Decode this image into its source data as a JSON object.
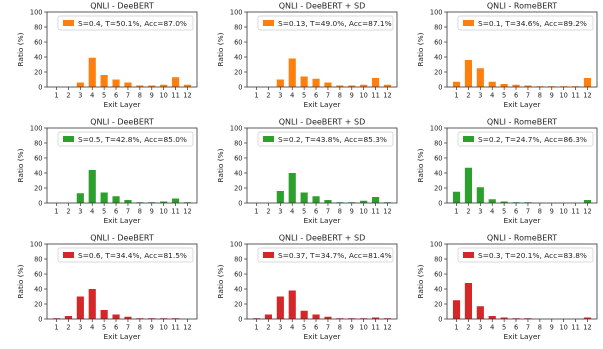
{
  "chart_data": [
    {
      "type": "bar",
      "title": "QNLI - DeeBERT",
      "xlabel": "Exit Layer",
      "ylabel": "Ratio (%)",
      "ylim": [
        0,
        100
      ],
      "yticks": [
        0,
        20,
        40,
        60,
        80,
        100
      ],
      "categories": [
        "1",
        "2",
        "3",
        "4",
        "5",
        "6",
        "7",
        "8",
        "9",
        "10",
        "11",
        "12"
      ],
      "series": [
        {
          "name": "S=0.4, T=50.1%, Acc=87.0%",
          "color": "#ff7f0e",
          "values": [
            0,
            0,
            6,
            39,
            16,
            10,
            6,
            2,
            2,
            3,
            13,
            3
          ]
        }
      ],
      "legend": "top-right"
    },
    {
      "type": "bar",
      "title": "QNLI - DeeBERT + SD",
      "xlabel": "Exit Layer",
      "ylabel": "Ratio (%)",
      "ylim": [
        0,
        100
      ],
      "yticks": [
        0,
        20,
        40,
        60,
        80,
        100
      ],
      "categories": [
        "1",
        "2",
        "3",
        "4",
        "5",
        "6",
        "7",
        "8",
        "9",
        "10",
        "11",
        "12"
      ],
      "series": [
        {
          "name": "S=0.13, T=49.0%, Acc=87.1%",
          "color": "#ff7f0e",
          "values": [
            0,
            0,
            10,
            38,
            14,
            11,
            6,
            2,
            2,
            3,
            12,
            3
          ]
        }
      ],
      "legend": "top-right"
    },
    {
      "type": "bar",
      "title": "QNLI - RomeBERT",
      "xlabel": "Exit Layer",
      "ylabel": "Ratio (%)",
      "ylim": [
        0,
        100
      ],
      "yticks": [
        0,
        20,
        40,
        60,
        80,
        100
      ],
      "categories": [
        "1",
        "2",
        "3",
        "4",
        "5",
        "6",
        "7",
        "8",
        "9",
        "10",
        "11",
        "12"
      ],
      "series": [
        {
          "name": "S=0.1, T=34.6%, Acc=89.2%",
          "color": "#ff7f0e",
          "values": [
            7,
            36,
            25,
            7,
            4,
            3,
            2,
            1,
            1,
            1,
            1,
            12
          ]
        }
      ],
      "legend": "top-right"
    },
    {
      "type": "bar",
      "title": "QNLI - DeeBERT",
      "xlabel": "Exit Layer",
      "ylabel": "Ratio (%)",
      "ylim": [
        0,
        100
      ],
      "yticks": [
        0,
        20,
        40,
        60,
        80,
        100
      ],
      "categories": [
        "1",
        "2",
        "3",
        "4",
        "5",
        "6",
        "7",
        "8",
        "9",
        "10",
        "11",
        "12"
      ],
      "series": [
        {
          "name": "S=0.5, T=42.8%, Acc=85.0%",
          "color": "#2ca02c",
          "values": [
            0,
            0,
            13,
            44,
            14,
            9,
            4,
            1,
            1,
            2,
            6,
            1
          ]
        }
      ],
      "legend": "top-right"
    },
    {
      "type": "bar",
      "title": "QNLI - DeeBERT + SD",
      "xlabel": "Exit Layer",
      "ylabel": "Ratio (%)",
      "ylim": [
        0,
        100
      ],
      "yticks": [
        0,
        20,
        40,
        60,
        80,
        100
      ],
      "categories": [
        "1",
        "2",
        "3",
        "4",
        "5",
        "6",
        "7",
        "8",
        "9",
        "10",
        "11",
        "12"
      ],
      "series": [
        {
          "name": "S=0.2, T=43.8%, Acc=85.3%",
          "color": "#2ca02c",
          "values": [
            0,
            0,
            16,
            40,
            14,
            9,
            4,
            1,
            1,
            3,
            8,
            1
          ]
        }
      ],
      "legend": "top-right"
    },
    {
      "type": "bar",
      "title": "QNLI - RomeBERT",
      "xlabel": "Exit Layer",
      "ylabel": "Ratio (%)",
      "ylim": [
        0,
        100
      ],
      "yticks": [
        0,
        20,
        40,
        60,
        80,
        100
      ],
      "categories": [
        "1",
        "2",
        "3",
        "4",
        "5",
        "6",
        "7",
        "8",
        "9",
        "10",
        "11",
        "12"
      ],
      "series": [
        {
          "name": "S=0.2, T=24.7%, Acc=86.3%",
          "color": "#2ca02c",
          "values": [
            15,
            47,
            21,
            5,
            2,
            1,
            1,
            0,
            0,
            0,
            0,
            4
          ]
        }
      ],
      "legend": "top-right"
    },
    {
      "type": "bar",
      "title": "QNLI - DeeBERT",
      "xlabel": "Exit Layer",
      "ylabel": "Ratio (%)",
      "ylim": [
        0,
        100
      ],
      "yticks": [
        0,
        20,
        40,
        60,
        80,
        100
      ],
      "categories": [
        "1",
        "2",
        "3",
        "4",
        "5",
        "6",
        "7",
        "8",
        "9",
        "10",
        "11",
        "12"
      ],
      "series": [
        {
          "name": "S=0.6, T=34.4%, Acc=81.5%",
          "color": "#d62728",
          "values": [
            1,
            4,
            30,
            40,
            12,
            6,
            3,
            1,
            1,
            1,
            1,
            0
          ]
        }
      ],
      "legend": "top-right"
    },
    {
      "type": "bar",
      "title": "QNLI - DeeBERT + SD",
      "xlabel": "Exit Layer",
      "ylabel": "Ratio (%)",
      "ylim": [
        0,
        100
      ],
      "yticks": [
        0,
        20,
        40,
        60,
        80,
        100
      ],
      "categories": [
        "1",
        "2",
        "3",
        "4",
        "5",
        "6",
        "7",
        "8",
        "9",
        "10",
        "11",
        "12"
      ],
      "series": [
        {
          "name": "S=0.37, T=34.7%, Acc=81.4%",
          "color": "#d62728",
          "values": [
            1,
            6,
            30,
            38,
            11,
            6,
            3,
            1,
            1,
            1,
            2,
            1
          ]
        }
      ],
      "legend": "top-right"
    },
    {
      "type": "bar",
      "title": "QNLI - RomeBERT",
      "xlabel": "Exit Layer",
      "ylabel": "Ratio (%)",
      "ylim": [
        0,
        100
      ],
      "yticks": [
        0,
        20,
        40,
        60,
        80,
        100
      ],
      "categories": [
        "1",
        "2",
        "3",
        "4",
        "5",
        "6",
        "7",
        "8",
        "9",
        "10",
        "11",
        "12"
      ],
      "series": [
        {
          "name": "S=0.3, T=20.1%, Acc=83.8%",
          "color": "#d62728",
          "values": [
            25,
            48,
            17,
            4,
            2,
            1,
            1,
            0,
            0,
            0,
            0,
            2
          ]
        }
      ],
      "legend": "top-right"
    }
  ]
}
